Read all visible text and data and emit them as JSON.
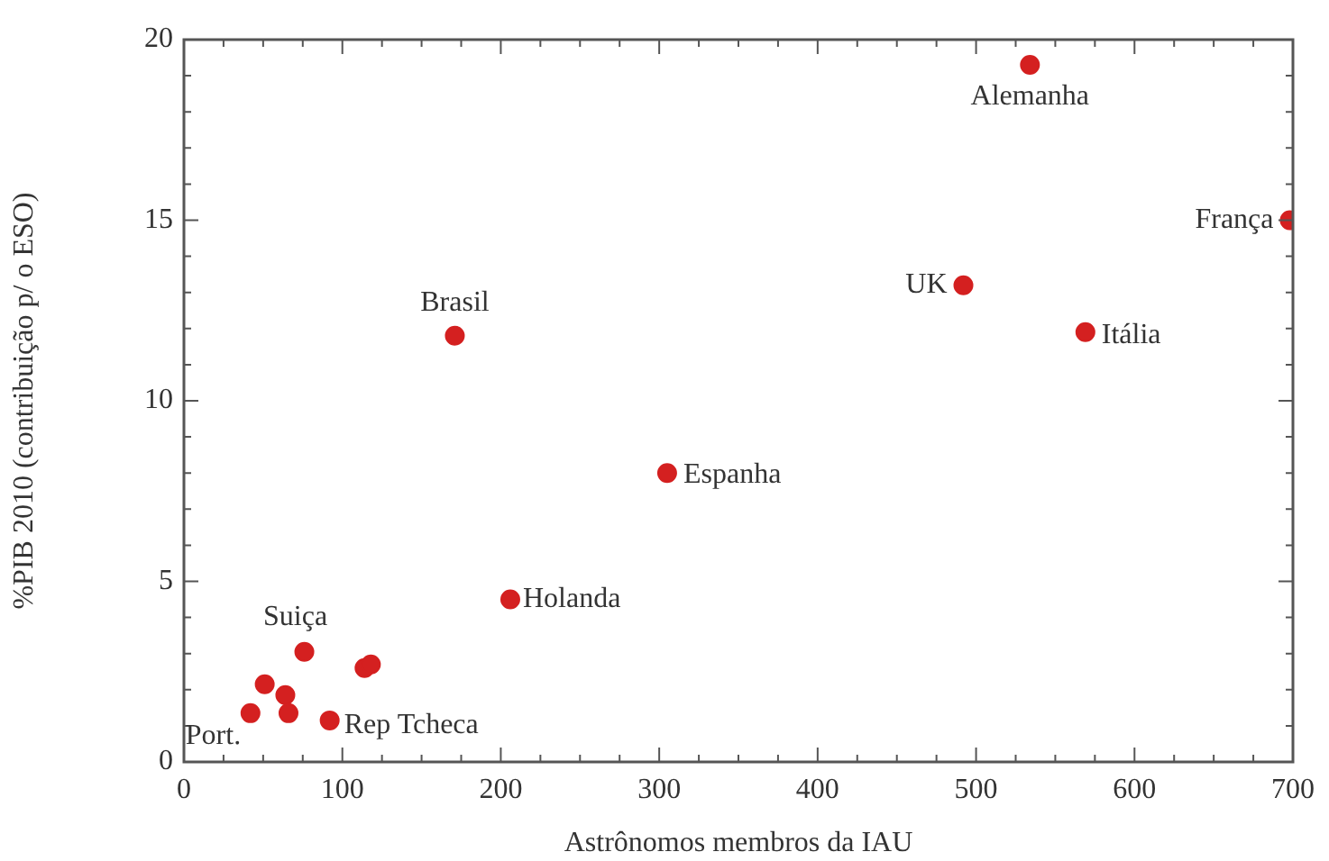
{
  "chart_data": {
    "type": "scatter",
    "xlabel": "Astrônomos membros da IAU",
    "ylabel": "%PIB 2010 (contribuição p/ o ESO)",
    "x": [
      534,
      698,
      492,
      569,
      171,
      305,
      206,
      76,
      42,
      92,
      51,
      64,
      66,
      114,
      118
    ],
    "values": [
      19.3,
      15.0,
      13.2,
      11.9,
      11.8,
      8.0,
      4.5,
      3.05,
      1.35,
      1.15,
      2.15,
      1.85,
      1.35,
      2.6,
      2.7
    ],
    "color": "#d42020",
    "marker": "circle",
    "xlim": [
      0,
      700
    ],
    "xticks": [
      0,
      100,
      200,
      300,
      400,
      500,
      600,
      700
    ],
    "ylim": [
      0,
      20
    ],
    "yticks": [
      0,
      5,
      10,
      15,
      20
    ],
    "grid": false,
    "legend": false,
    "annotations": [
      {
        "text": "Alemanha",
        "x": 534,
        "y": 19.3
      },
      {
        "text": "França",
        "x": 698,
        "y": 15.0
      },
      {
        "text": "UK",
        "x": 492,
        "y": 13.2
      },
      {
        "text": "Itália",
        "x": 569,
        "y": 11.9
      },
      {
        "text": "Brasil",
        "x": 171,
        "y": 11.8
      },
      {
        "text": "Espanha",
        "x": 305,
        "y": 8.0
      },
      {
        "text": "Holanda",
        "x": 206,
        "y": 4.5
      },
      {
        "text": "Suiça",
        "x": 76,
        "y": 3.05
      },
      {
        "text": "Port.",
        "x": 42,
        "y": 1.35
      },
      {
        "text": "Rep Tcheca",
        "x": 92,
        "y": 1.15
      }
    ]
  }
}
